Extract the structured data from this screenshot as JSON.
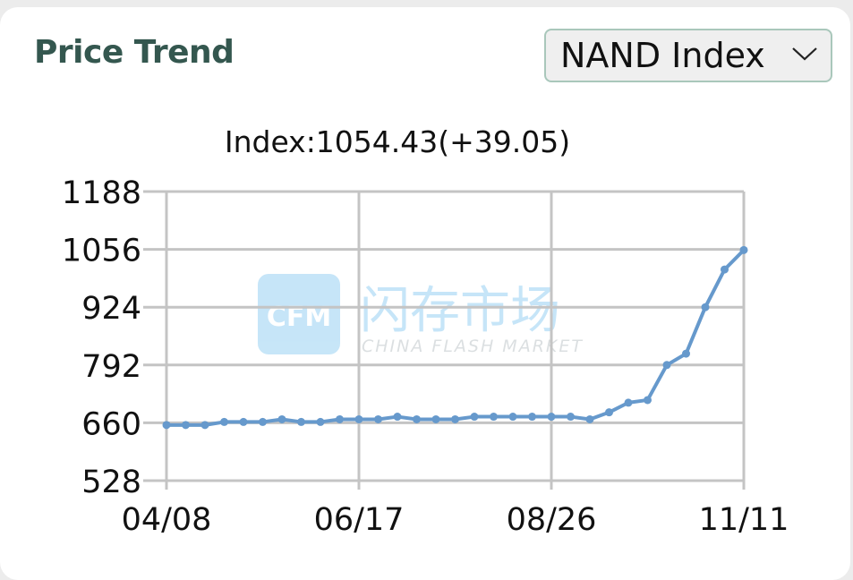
{
  "header": {
    "title": "Price Trend",
    "selector_label": "NAND Index"
  },
  "icons": {
    "selector_chevron": "chevron-down-icon"
  },
  "watermark": {
    "logo_text": "CFM",
    "chinese_text": "闪存市场",
    "english_text": "CHINA FLASH MARKET"
  },
  "chart_data": {
    "type": "line",
    "title": "Index:1054.43(+39.05)",
    "xlabel": "",
    "ylabel": "",
    "ylim": [
      528,
      1188
    ],
    "yticks": [
      528,
      660,
      792,
      924,
      1056,
      1188
    ],
    "xticks": [
      "04/08",
      "06/17",
      "08/26",
      "11/11"
    ],
    "grid": true,
    "line_color": "#6699cc",
    "series": [
      {
        "values": [
          655,
          655,
          655,
          662,
          662,
          662,
          668,
          662,
          662,
          668,
          668,
          668,
          674,
          668,
          668,
          668,
          674,
          674,
          674,
          674,
          674,
          674,
          668,
          684,
          706,
          712,
          792,
          818,
          924,
          1010,
          1054.43
        ]
      }
    ]
  }
}
